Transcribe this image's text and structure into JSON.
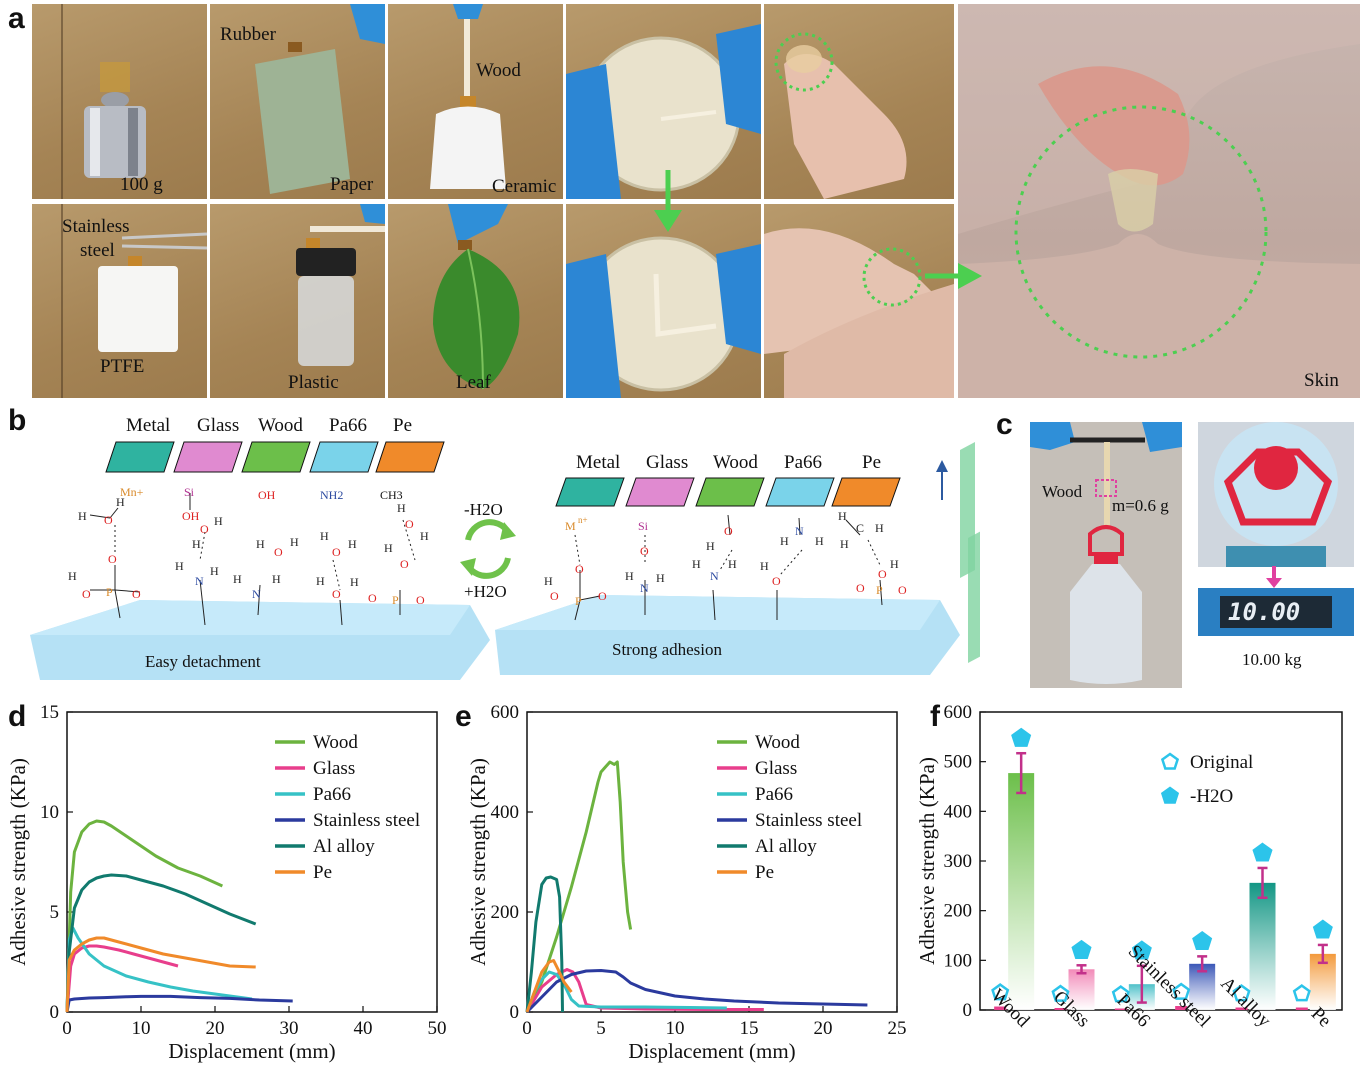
{
  "panel_a": {
    "letter": "a",
    "tiles": [
      {
        "caption": "100 g"
      },
      {
        "caption_top": "Rubber",
        "caption": "Paper"
      },
      {
        "caption_top": "Wood",
        "caption": "Ceramic"
      },
      {
        "caption_top": "Stainless",
        "caption_top2": "steel",
        "caption": "PTFE"
      },
      {
        "caption": "Plastic"
      },
      {
        "caption": "Leaf"
      }
    ],
    "skin_caption": "Skin"
  },
  "panel_b": {
    "letter": "b",
    "left_surfaces": [
      "Metal",
      "Glass",
      "Wood",
      "Pa66",
      "Pe"
    ],
    "right_surfaces": [
      "Metal",
      "Glass",
      "Wood",
      "Pa66",
      "Pe"
    ],
    "surface_colors": [
      "#2fb3a0",
      "#e08ad0",
      "#6cbf4a",
      "#7ad3ea",
      "#f08a2a"
    ],
    "groups": [
      "Mn+",
      "Si",
      "OH",
      "NH2",
      "CH3"
    ],
    "minus_h2o": "-H2O",
    "plus_h2o": "+H2O",
    "left_caption": "Easy detachment",
    "right_caption": "Strong adhesion"
  },
  "panel_c": {
    "letter": "c",
    "wood_label": "Wood",
    "mass_label": "m=0.6 g",
    "scale_reading": "10.00",
    "weight_caption": "10.00 kg"
  },
  "chart_data": [
    {
      "panel": "d",
      "type": "line",
      "xlabel": "Displacement (mm)",
      "ylabel": "Adhesive strength (KPa)",
      "xlim": [
        0,
        50
      ],
      "ylim": [
        0,
        15
      ],
      "xticks": [
        0,
        10,
        20,
        30,
        40,
        50
      ],
      "yticks": [
        0,
        5,
        10,
        15
      ],
      "series": [
        {
          "name": "Wood",
          "color": "#6cb33f",
          "x": [
            0,
            0.5,
            1,
            2,
            3,
            4,
            5,
            6,
            8,
            10,
            12,
            15,
            18,
            21
          ],
          "y": [
            0,
            6,
            8,
            9,
            9.4,
            9.55,
            9.5,
            9.3,
            8.8,
            8.3,
            7.8,
            7.2,
            6.8,
            6.3
          ]
        },
        {
          "name": "Glass",
          "color": "#e83e8c",
          "x": [
            0,
            0.5,
            1,
            2,
            3,
            4,
            5,
            7,
            9,
            11,
            13,
            15
          ],
          "y": [
            0,
            2.3,
            2.9,
            3.2,
            3.3,
            3.3,
            3.25,
            3.1,
            2.9,
            2.7,
            2.5,
            2.3
          ]
        },
        {
          "name": "Pa66",
          "color": "#36c2c6",
          "x": [
            0,
            0.3,
            0.8,
            1.5,
            3,
            5,
            8,
            11,
            14,
            17,
            20,
            23,
            25
          ],
          "y": [
            0,
            3.6,
            4.2,
            3.7,
            2.9,
            2.3,
            1.8,
            1.5,
            1.25,
            1.05,
            0.9,
            0.75,
            0.65
          ]
        },
        {
          "name": "Stainless steel",
          "color": "#2b3a9e",
          "x": [
            0,
            0.3,
            1,
            3,
            5,
            8,
            10,
            14,
            18,
            22,
            26,
            30.5
          ],
          "y": [
            0,
            0.6,
            0.65,
            0.7,
            0.72,
            0.76,
            0.78,
            0.78,
            0.72,
            0.68,
            0.6,
            0.55
          ]
        },
        {
          "name": "Al alloy",
          "color": "#117a6e",
          "x": [
            0,
            0.3,
            1,
            2,
            3,
            4,
            5,
            6,
            8,
            10,
            13,
            16,
            19,
            22,
            25.5
          ],
          "y": [
            0,
            3,
            5.2,
            6.1,
            6.5,
            6.7,
            6.8,
            6.85,
            6.8,
            6.6,
            6.3,
            5.9,
            5.4,
            4.9,
            4.4
          ]
        },
        {
          "name": "Pe",
          "color": "#f08a2a",
          "x": [
            0,
            0.3,
            1,
            2,
            3,
            4,
            5,
            7,
            10,
            13,
            16,
            19,
            22,
            25.5
          ],
          "y": [
            0,
            2.6,
            3.1,
            3.4,
            3.6,
            3.7,
            3.7,
            3.5,
            3.2,
            2.9,
            2.7,
            2.5,
            2.3,
            2.25
          ]
        }
      ]
    },
    {
      "panel": "e",
      "type": "line",
      "xlabel": "Displacement (mm)",
      "ylabel": "Adhesive strength (KPa)",
      "xlim": [
        0,
        25
      ],
      "ylim": [
        0,
        600
      ],
      "xticks": [
        0,
        5,
        10,
        15,
        20,
        25
      ],
      "yticks": [
        0,
        200,
        400,
        600
      ],
      "series": [
        {
          "name": "Wood",
          "color": "#6cb33f",
          "x": [
            0,
            1,
            2,
            3,
            4,
            4.8,
            5,
            5.3,
            5.6,
            5.9,
            6.1,
            6.3,
            6.5,
            6.8,
            7.0
          ],
          "y": [
            0,
            60,
            150,
            250,
            360,
            460,
            480,
            490,
            500,
            495,
            500,
            420,
            300,
            200,
            165
          ]
        },
        {
          "name": "Glass",
          "color": "#e83e8c",
          "x": [
            0,
            0.5,
            1,
            2,
            2.7,
            3.1,
            3.5,
            4,
            5,
            8,
            12,
            16
          ],
          "y": [
            0,
            25,
            50,
            75,
            85,
            80,
            60,
            15,
            8,
            6,
            5,
            5
          ]
        },
        {
          "name": "Pa66",
          "color": "#36c2c6",
          "x": [
            0,
            0.5,
            1,
            1.5,
            2,
            2.5,
            3,
            3.5,
            5,
            8,
            11,
            13.5
          ],
          "y": [
            0,
            40,
            65,
            80,
            75,
            55,
            25,
            12,
            10,
            10,
            9,
            8
          ]
        },
        {
          "name": "Stainless steel",
          "color": "#2b3a9e",
          "x": [
            0,
            1,
            2,
            3,
            4,
            5,
            6,
            6.5,
            7,
            8,
            10,
            12,
            14,
            17,
            20,
            23
          ],
          "y": [
            0,
            30,
            60,
            75,
            82,
            83,
            80,
            70,
            58,
            45,
            32,
            26,
            22,
            18,
            16,
            14
          ]
        },
        {
          "name": "Al alloy",
          "color": "#117a6e",
          "x": [
            0,
            0.3,
            0.6,
            1,
            1.3,
            1.6,
            2,
            2.2,
            2.35,
            2.4
          ],
          "y": [
            0,
            80,
            180,
            255,
            268,
            270,
            265,
            230,
            100,
            0
          ]
        },
        {
          "name": "Pe",
          "color": "#f08a2a",
          "x": [
            0,
            0.5,
            1,
            1.5,
            1.8,
            2.1,
            2.5,
            3.0
          ],
          "y": [
            0,
            40,
            80,
            100,
            103,
            85,
            60,
            40
          ]
        }
      ]
    },
    {
      "panel": "f",
      "type": "bar",
      "ylabel": "Adhesive strength (KPa)",
      "ylim": [
        0,
        600
      ],
      "yticks": [
        0,
        100,
        200,
        300,
        400,
        500,
        600
      ],
      "categories": [
        "Wood",
        "Glass",
        "Pa66",
        "Stainless steel",
        "Al alloy",
        "Pe"
      ],
      "series": [
        {
          "name": "Original",
          "values": [
            7,
            4,
            3,
            8,
            5,
            5
          ],
          "errors": [
            3,
            2,
            2,
            3,
            2,
            2
          ]
        },
        {
          "name": "-H2O",
          "values": [
            477,
            82,
            52,
            93,
            256,
            113
          ],
          "errors": [
            40,
            8,
            37,
            15,
            30,
            18
          ]
        }
      ],
      "bar_colors": [
        "#6cbf4a",
        "#f28ab8",
        "#4fc1c9",
        "#3b57b7",
        "#129684",
        "#f39a3c"
      ],
      "marker_color": "#2cc4ea"
    }
  ],
  "panel_letters": {
    "d": "d",
    "e": "e",
    "f": "f"
  },
  "legend_f": {
    "original": "Original",
    "minus_h2o": "-H2O"
  }
}
